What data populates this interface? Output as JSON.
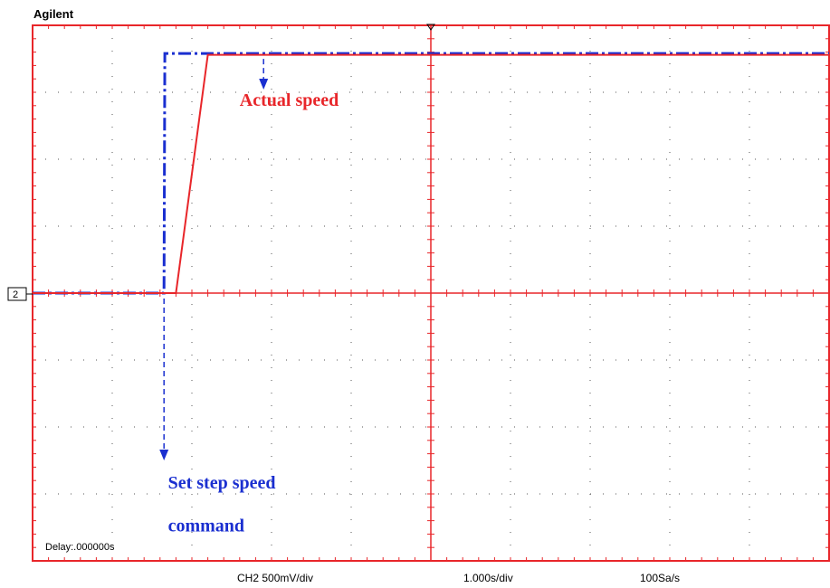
{
  "header": {
    "brand": "Agilent"
  },
  "status_bar": {
    "channel_scale": "CH2 500mV/div",
    "time_scale": "1.000s/div",
    "sample_rate": "100Sa/s"
  },
  "display": {
    "delay": "Delay:.000000s",
    "channel_marker": "2",
    "grid_color": "#e8262a",
    "dot_color": "#555555"
  },
  "chart_data": {
    "type": "line",
    "title": "",
    "xlabel": "",
    "ylabel": "",
    "x_units": "s",
    "y_units": "V",
    "xlim": [
      0,
      10
    ],
    "ylim": [
      -2,
      2
    ],
    "grid": "dotted divisions, 10 x 8",
    "series": [
      {
        "name": "Set step speed command",
        "color": "#1a2fd0",
        "style": "dash-dot",
        "points": [
          [
            0,
            0
          ],
          [
            1.65,
            0
          ],
          [
            1.66,
            1.79
          ],
          [
            10,
            1.79
          ]
        ]
      },
      {
        "name": "Actual speed",
        "color": "#e8262a",
        "style": "solid",
        "points": [
          [
            0,
            0
          ],
          [
            1.8,
            0
          ],
          [
            2.2,
            1.78
          ],
          [
            10,
            1.78
          ]
        ]
      }
    ],
    "annotations": [
      {
        "text": "Actual speed",
        "color": "#e8262a",
        "x": 2.6,
        "y": 1.4
      },
      {
        "text": "Set step speed",
        "color": "#1a2fd0",
        "x": 1.7,
        "y": -1.46
      },
      {
        "text": "command",
        "color": "#1a2fd0",
        "x": 1.7,
        "y": -1.78
      }
    ]
  }
}
